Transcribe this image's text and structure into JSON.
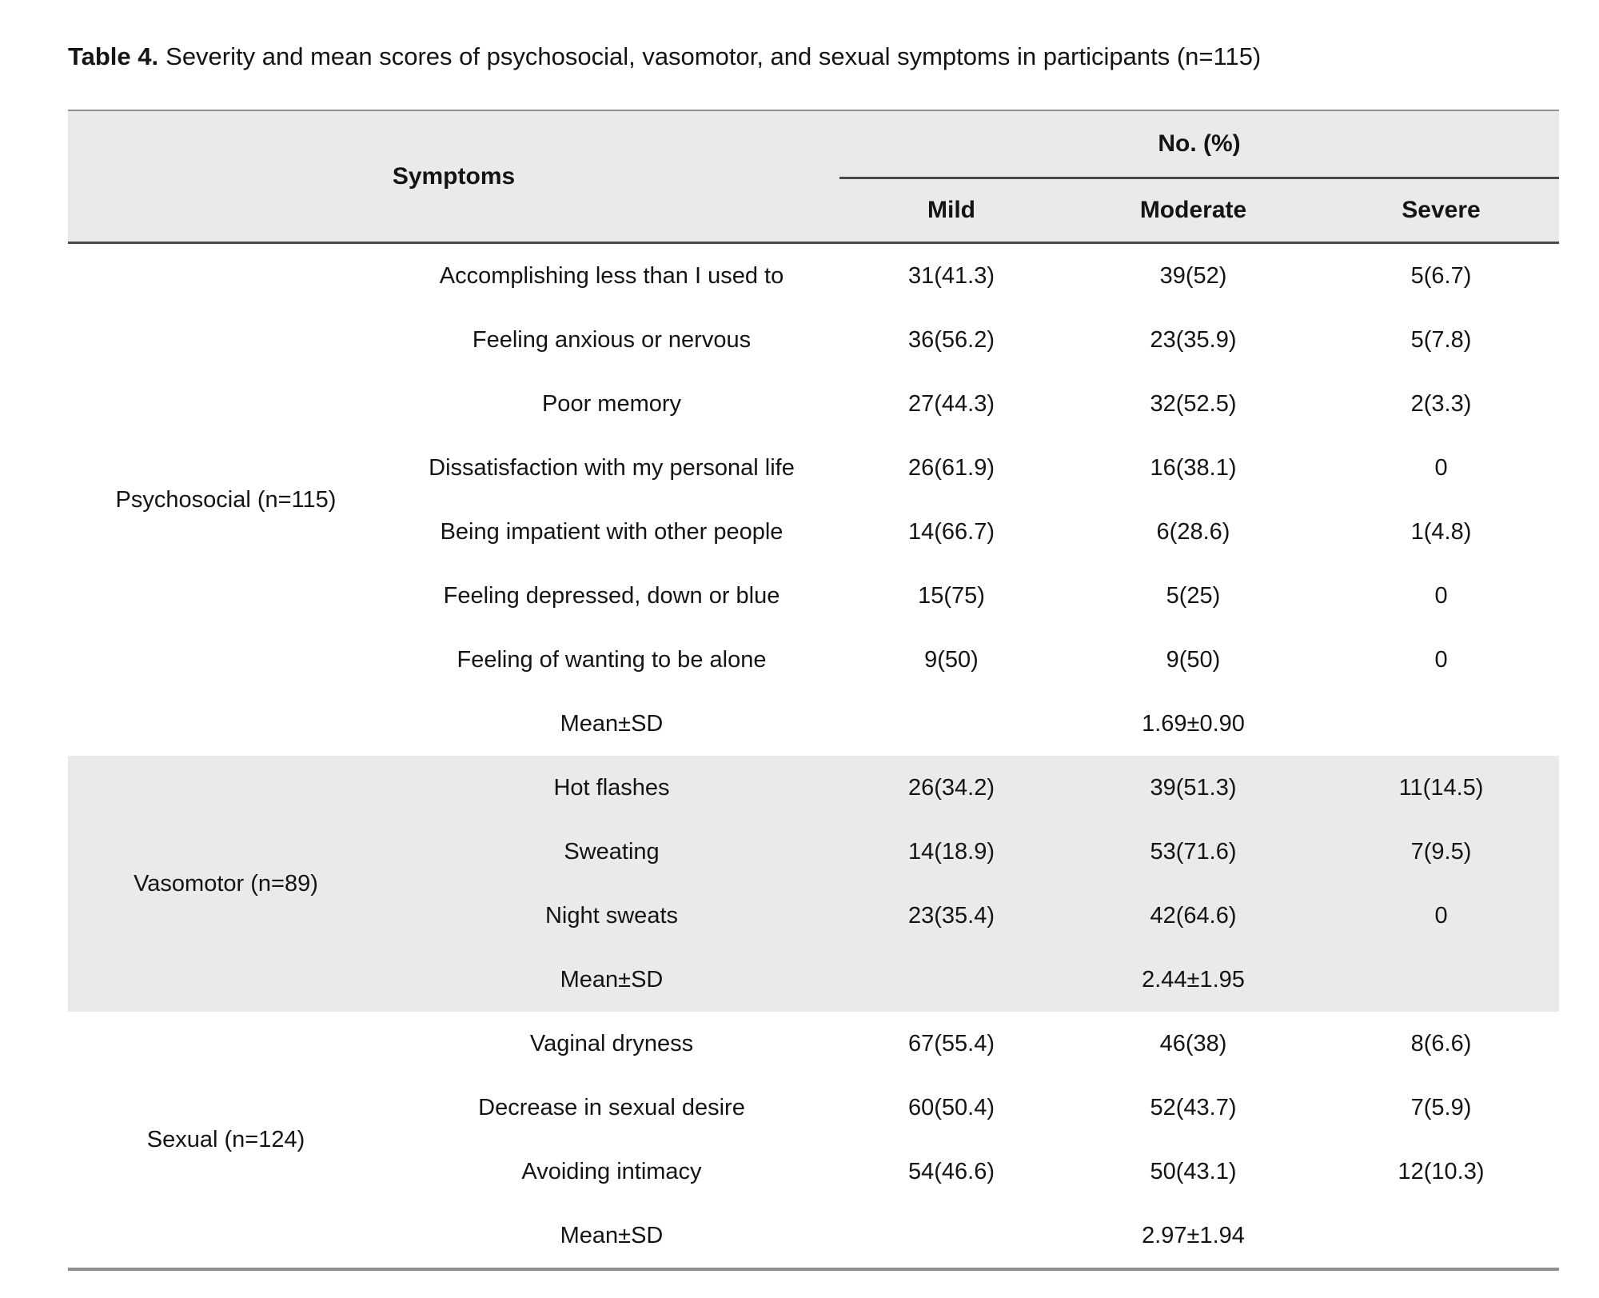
{
  "caption": {
    "label": "Table 4.",
    "text": "Severity and mean scores of psychosocial, vasomotor, and sexual symptoms in participants (n=115)"
  },
  "header": {
    "symptoms": "Symptoms",
    "group_label": "No. (%)",
    "cols": [
      "Mild",
      "Moderate",
      "Severe"
    ]
  },
  "sections": [
    {
      "group": "Psychosocial (n=115)",
      "rows": [
        {
          "symptom": "Accomplishing less than I used to",
          "mild": "31(41.3)",
          "moderate": "39(52)",
          "severe": "5(6.7)"
        },
        {
          "symptom": "Feeling anxious or nervous",
          "mild": "36(56.2)",
          "moderate": "23(35.9)",
          "severe": "5(7.8)"
        },
        {
          "symptom": "Poor memory",
          "mild": "27(44.3)",
          "moderate": "32(52.5)",
          "severe": "2(3.3)"
        },
        {
          "symptom": "Dissatisfaction with my personal life",
          "mild": "26(61.9)",
          "moderate": "16(38.1)",
          "severe": "0"
        },
        {
          "symptom": "Being impatient with other people",
          "mild": "14(66.7)",
          "moderate": "6(28.6)",
          "severe": "1(4.8)"
        },
        {
          "symptom": "Feeling depressed, down or blue",
          "mild": "15(75)",
          "moderate": "5(25)",
          "severe": "0"
        },
        {
          "symptom": "Feeling of wanting to be alone",
          "mild": "9(50)",
          "moderate": "9(50)",
          "severe": "0"
        },
        {
          "symptom": "Mean±SD",
          "mild": "",
          "moderate": "1.69±0.90",
          "severe": ""
        }
      ]
    },
    {
      "group": "Vasomotor (n=89)",
      "rows": [
        {
          "symptom": "Hot flashes",
          "mild": "26(34.2)",
          "moderate": "39(51.3)",
          "severe": "11(14.5)"
        },
        {
          "symptom": "Sweating",
          "mild": "14(18.9)",
          "moderate": "53(71.6)",
          "severe": "7(9.5)"
        },
        {
          "symptom": "Night sweats",
          "mild": "23(35.4)",
          "moderate": "42(64.6)",
          "severe": "0"
        },
        {
          "symptom": "Mean±SD",
          "mild": "",
          "moderate": "2.44±1.95",
          "severe": ""
        }
      ]
    },
    {
      "group": "Sexual (n=124)",
      "rows": [
        {
          "symptom": "Vaginal dryness",
          "mild": "67(55.4)",
          "moderate": "46(38)",
          "severe": "8(6.6)"
        },
        {
          "symptom": "Decrease in sexual desire",
          "mild": "60(50.4)",
          "moderate": "52(43.7)",
          "severe": "7(5.9)"
        },
        {
          "symptom": "Avoiding intimacy",
          "mild": "54(46.6)",
          "moderate": "50(43.1)",
          "severe": "12(10.3)"
        },
        {
          "symptom": "Mean±SD",
          "mild": "",
          "moderate": "2.97±1.94",
          "severe": ""
        }
      ]
    }
  ],
  "colors": {
    "band": "#eaeaea",
    "rule_dark": "#4a4a4a",
    "rule_light": "#8f8f8f"
  }
}
